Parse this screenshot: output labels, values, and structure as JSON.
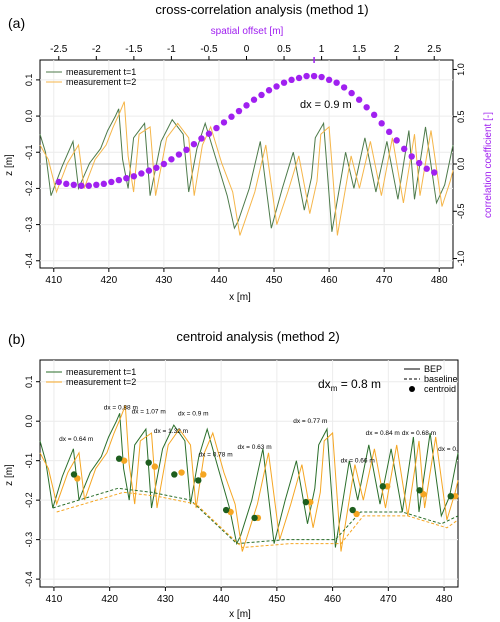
{
  "chart_data": [
    {
      "type": "line",
      "panel_label": "(a)",
      "title": "cross-correlation analysis (method 1)",
      "xlabel": "x [m]",
      "ylabel": "z [m]",
      "xlim": [
        407.5,
        482.5
      ],
      "ylim": [
        -0.42,
        0.155
      ],
      "x_ticks": [
        410,
        420,
        430,
        440,
        450,
        460,
        470,
        480
      ],
      "y_ticks": [
        -0.4,
        -0.3,
        -0.2,
        -0.1,
        0.0,
        0.1
      ],
      "grid": true,
      "legend": {
        "position": "top-left",
        "entries": [
          {
            "name": "measurement t=1",
            "color": "#4d7a4a"
          },
          {
            "name": "measurement t=2",
            "color": "#f5b64a"
          }
        ]
      },
      "annotation": "dx = 0.9 m",
      "top_axis": {
        "label": "spatial offset [m]",
        "range": [
          -2.75,
          2.75
        ],
        "ticks": [
          -2.5,
          -2,
          -1.5,
          -1,
          -0.5,
          0,
          0.5,
          1,
          1.5,
          2,
          2.5
        ],
        "color": "#a020f0"
      },
      "right_axis": {
        "label": "correlation coefficient [-]",
        "range": [
          -1.1,
          1.1
        ],
        "ticks": [
          -1.0,
          -0.5,
          0.0,
          0.5,
          1.0
        ],
        "color": "#a020f0"
      },
      "peak_marker": 0.9,
      "series": [
        {
          "name": "measurement t=1",
          "color": "#4d7a4a",
          "x": [
            407.5,
            408.5,
            409.5,
            411.5,
            413.5,
            414.5,
            416.5,
            418.5,
            419.8,
            421.2,
            421.8,
            422.5,
            423.5,
            424.5,
            426.5,
            427.5,
            429.5,
            431.5,
            433.5,
            434.5,
            436.0,
            437.5,
            439.5,
            441.5,
            442.8,
            443.5,
            445.5,
            447.5,
            449.5,
            451.5,
            453.5,
            455.5,
            456.8,
            457.5,
            459.0,
            460.5,
            463.0,
            464.5,
            466.5,
            468.5,
            470.5,
            472.5,
            474.5,
            475.5,
            477.5,
            479.5,
            481.0,
            482.5
          ],
          "values": [
            -0.05,
            -0.1,
            -0.22,
            -0.14,
            -0.07,
            -0.2,
            -0.13,
            -0.09,
            -0.04,
            0.0,
            0.02,
            -0.12,
            -0.2,
            -0.06,
            -0.02,
            -0.22,
            -0.07,
            -0.01,
            -0.05,
            -0.21,
            -0.09,
            -0.02,
            -0.12,
            -0.22,
            -0.31,
            -0.29,
            -0.2,
            -0.07,
            -0.31,
            -0.2,
            -0.1,
            -0.26,
            -0.17,
            -0.06,
            -0.02,
            -0.32,
            -0.1,
            -0.2,
            -0.06,
            -0.21,
            -0.07,
            -0.23,
            -0.04,
            -0.23,
            -0.03,
            -0.24,
            -0.19,
            -0.08
          ]
        },
        {
          "name": "measurement t=2",
          "color": "#f5b64a",
          "x": [
            407.5,
            409.0,
            410.5,
            412.5,
            414.5,
            415.5,
            417.5,
            419.5,
            420.8,
            422.0,
            422.8,
            423.5,
            424.5,
            425.5,
            427.5,
            428.5,
            430.5,
            432.5,
            434.5,
            435.5,
            437.0,
            438.5,
            440.5,
            442.5,
            443.8,
            444.5,
            446.5,
            448.5,
            450.5,
            452.5,
            454.5,
            456.5,
            457.8,
            458.5,
            460.0,
            461.5,
            464.0,
            465.5,
            467.5,
            469.5,
            471.5,
            473.5,
            475.5,
            476.5,
            478.5,
            480.5,
            482.0,
            482.5
          ],
          "values": [
            -0.08,
            -0.12,
            -0.21,
            -0.13,
            -0.08,
            -0.2,
            -0.12,
            -0.08,
            -0.03,
            0.01,
            0.04,
            -0.11,
            -0.21,
            -0.05,
            -0.03,
            -0.22,
            -0.06,
            -0.02,
            -0.06,
            -0.22,
            -0.08,
            -0.03,
            -0.13,
            -0.21,
            -0.33,
            -0.3,
            -0.21,
            -0.08,
            -0.3,
            -0.21,
            -0.11,
            -0.27,
            -0.18,
            -0.05,
            -0.03,
            -0.33,
            -0.11,
            -0.2,
            -0.07,
            -0.22,
            -0.06,
            -0.24,
            -0.05,
            -0.22,
            -0.04,
            -0.25,
            -0.18,
            -0.15
          ]
        },
        {
          "name": "correlation coefficient",
          "color": "#a020f0",
          "offsets": [
            -2.5,
            -2.4,
            -2.3,
            -2.2,
            -2.1,
            -2.0,
            -1.9,
            -1.8,
            -1.7,
            -1.6,
            -1.5,
            -1.4,
            -1.3,
            -1.2,
            -1.1,
            -1.0,
            -0.9,
            -0.8,
            -0.7,
            -0.6,
            -0.5,
            -0.4,
            -0.3,
            -0.2,
            -0.1,
            0.0,
            0.1,
            0.2,
            0.3,
            0.4,
            0.5,
            0.6,
            0.7,
            0.8,
            0.9,
            1.0,
            1.1,
            1.2,
            1.3,
            1.4,
            1.5,
            1.6,
            1.7,
            1.8,
            1.9,
            2.0,
            2.1,
            2.2,
            2.3,
            2.4,
            2.5
          ],
          "values": [
            -0.19,
            -0.21,
            -0.22,
            -0.23,
            -0.23,
            -0.22,
            -0.21,
            -0.19,
            -0.17,
            -0.15,
            -0.13,
            -0.1,
            -0.07,
            -0.04,
            0.0,
            0.05,
            0.1,
            0.15,
            0.21,
            0.27,
            0.32,
            0.38,
            0.44,
            0.5,
            0.56,
            0.62,
            0.68,
            0.73,
            0.78,
            0.82,
            0.86,
            0.89,
            0.91,
            0.93,
            0.93,
            0.92,
            0.89,
            0.86,
            0.81,
            0.75,
            0.68,
            0.6,
            0.52,
            0.43,
            0.34,
            0.25,
            0.16,
            0.08,
            0.01,
            -0.05,
            -0.09
          ]
        }
      ]
    },
    {
      "type": "line",
      "panel_label": "(b)",
      "title": "centroid analysis (method 2)",
      "xlabel": "x [m]",
      "ylabel": "z [m]",
      "xlim": [
        407.5,
        482.5
      ],
      "ylim": [
        -0.42,
        0.155
      ],
      "x_ticks": [
        410,
        420,
        430,
        440,
        450,
        460,
        470,
        480
      ],
      "y_ticks": [
        -0.4,
        -0.3,
        -0.2,
        -0.1,
        0.0,
        0.1
      ],
      "grid": true,
      "legend_left": {
        "position": "top-left",
        "entries": [
          {
            "name": "measurement t=1",
            "color": "#2a6e2a"
          },
          {
            "name": "measurement t=2",
            "color": "#f5a623"
          }
        ]
      },
      "legend_right": {
        "position": "top-right",
        "entries": [
          {
            "name": "BEP",
            "style": "line"
          },
          {
            "name": "baseline",
            "style": "dashed"
          },
          {
            "name": "centroid",
            "style": "dot"
          }
        ]
      },
      "annotation_main": "dx",
      "annotation_sub": "m",
      "annotation_value": " = 0.8 m",
      "displacement_labels": [
        {
          "text": "dx = 0.64 m",
          "x": 414,
          "z": -0.05
        },
        {
          "text": "dx = 0.88 m",
          "x": 422,
          "z": 0.03
        },
        {
          "text": "dx = 1.07 m",
          "x": 427,
          "z": 0.02
        },
        {
          "text": "dx = 1.32 m",
          "x": 431,
          "z": -0.03
        },
        {
          "text": "dx = 0.9 m",
          "x": 435,
          "z": 0.015
        },
        {
          "text": "dx = 0.78 m",
          "x": 439,
          "z": -0.09
        },
        {
          "text": "dx = 0.63 m",
          "x": 446,
          "z": -0.07
        },
        {
          "text": "dx = 0.77 m",
          "x": 456,
          "z": -0.005
        },
        {
          "text": "dx = 0.66 m",
          "x": 464.5,
          "z": -0.105
        },
        {
          "text": "dx = 0.84 m",
          "x": 469,
          "z": -0.035
        },
        {
          "text": "dx = 0.68 m",
          "x": 475.5,
          "z": -0.035
        },
        {
          "text": "dx = 0.",
          "x": 480.7,
          "z": -0.075
        }
      ],
      "centroids_t1": {
        "color": "#1e5e1e",
        "x": [
          413.6,
          421.7,
          427.0,
          431.6,
          435.9,
          440.9,
          446.0,
          455.2,
          463.6,
          469.0,
          475.6,
          481.2
        ],
        "z": [
          -0.135,
          -0.095,
          -0.105,
          -0.135,
          -0.15,
          -0.225,
          -0.245,
          -0.205,
          -0.225,
          -0.165,
          -0.175,
          -0.19
        ]
      },
      "centroids_t2": {
        "color": "#f5a623",
        "x": [
          414.2,
          422.6,
          428.1,
          432.9,
          436.8,
          441.7,
          446.6,
          456.0,
          464.3,
          469.8,
          476.3,
          482.0
        ],
        "z": [
          -0.145,
          -0.1,
          -0.115,
          -0.13,
          -0.135,
          -0.23,
          -0.245,
          -0.205,
          -0.235,
          -0.165,
          -0.185,
          -0.19
        ]
      },
      "series": [
        {
          "name": "measurement t=1",
          "color": "#2a6e2a",
          "x": [
            407.5,
            408.5,
            409.8,
            411.5,
            413.5,
            414.5,
            416.5,
            418.5,
            419.8,
            421.2,
            421.8,
            422.5,
            423.5,
            424.5,
            426.5,
            427.5,
            429.5,
            431.5,
            433.5,
            434.5,
            436.0,
            437.5,
            439.5,
            441.5,
            442.8,
            443.5,
            445.5,
            447.5,
            449.5,
            451.5,
            453.5,
            455.5,
            456.8,
            457.5,
            459.0,
            460.5,
            463.0,
            464.5,
            466.5,
            468.5,
            470.5,
            472.5,
            474.5,
            475.5,
            477.5,
            479.5,
            481.0,
            482.5
          ],
          "values": [
            -0.05,
            -0.1,
            -0.22,
            -0.14,
            -0.07,
            -0.2,
            -0.13,
            -0.09,
            -0.04,
            0.0,
            0.02,
            -0.12,
            -0.2,
            -0.06,
            -0.02,
            -0.22,
            -0.07,
            -0.01,
            -0.05,
            -0.21,
            -0.09,
            -0.02,
            -0.12,
            -0.22,
            -0.31,
            -0.29,
            -0.2,
            -0.07,
            -0.31,
            -0.2,
            -0.1,
            -0.26,
            -0.17,
            -0.06,
            -0.02,
            -0.32,
            -0.1,
            -0.2,
            -0.06,
            -0.21,
            -0.07,
            -0.23,
            -0.04,
            -0.23,
            -0.03,
            -0.24,
            -0.19,
            -0.08
          ]
        },
        {
          "name": "measurement t=2",
          "color": "#f5a623",
          "x": [
            407.5,
            409.0,
            410.5,
            412.5,
            414.5,
            415.5,
            417.5,
            419.5,
            420.8,
            422.0,
            422.8,
            423.5,
            424.5,
            425.5,
            427.5,
            428.5,
            430.5,
            432.5,
            434.5,
            435.5,
            437.0,
            438.5,
            440.5,
            442.5,
            443.8,
            444.5,
            446.5,
            448.5,
            450.5,
            452.5,
            454.5,
            456.5,
            457.8,
            458.5,
            460.0,
            461.5,
            464.0,
            465.5,
            467.5,
            469.5,
            471.5,
            473.5,
            475.5,
            476.5,
            478.5,
            480.5,
            482.0,
            482.5
          ],
          "values": [
            -0.08,
            -0.12,
            -0.21,
            -0.13,
            -0.08,
            -0.2,
            -0.12,
            -0.08,
            -0.03,
            0.01,
            0.04,
            -0.11,
            -0.21,
            -0.05,
            -0.03,
            -0.22,
            -0.06,
            -0.02,
            -0.06,
            -0.22,
            -0.08,
            -0.03,
            -0.13,
            -0.21,
            -0.33,
            -0.3,
            -0.21,
            -0.08,
            -0.3,
            -0.21,
            -0.11,
            -0.27,
            -0.18,
            -0.05,
            -0.03,
            -0.33,
            -0.11,
            -0.2,
            -0.07,
            -0.22,
            -0.06,
            -0.24,
            -0.05,
            -0.22,
            -0.04,
            -0.25,
            -0.18,
            -0.15
          ]
        },
        {
          "name": "baseline t=1",
          "color": "#2a6e2a",
          "style": "dashed",
          "x": [
            409.8,
            421.5,
            427.5,
            434.5,
            442.8,
            451.5,
            460.5,
            465.0,
            472.5,
            479.5,
            482.5
          ],
          "values": [
            -0.22,
            -0.17,
            -0.18,
            -0.2,
            -0.31,
            -0.3,
            -0.3,
            -0.23,
            -0.23,
            -0.26,
            -0.24
          ]
        },
        {
          "name": "baseline t=2",
          "color": "#f5a623",
          "style": "dashed",
          "x": [
            410.5,
            422.5,
            428.5,
            435.5,
            443.8,
            452.5,
            461.5,
            465.5,
            473.5,
            480.5,
            482.5
          ],
          "values": [
            -0.23,
            -0.18,
            -0.19,
            -0.21,
            -0.32,
            -0.31,
            -0.31,
            -0.24,
            -0.24,
            -0.27,
            -0.25
          ]
        }
      ]
    }
  ]
}
